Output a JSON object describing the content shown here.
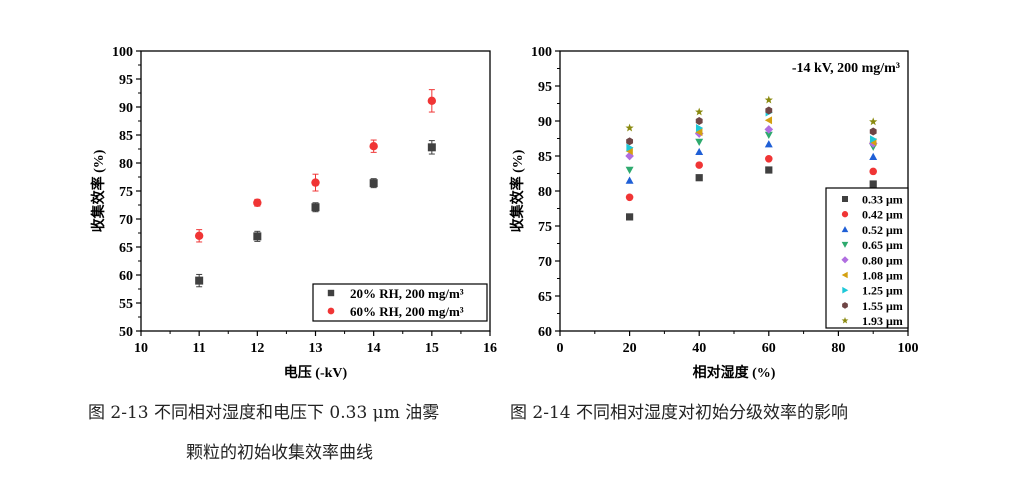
{
  "chart_data": [
    {
      "type": "scatter",
      "title": "",
      "xlabel": "电压 (-kV)",
      "ylabel": "收集效率 (%)",
      "xlim": [
        10,
        16
      ],
      "ylim": [
        50,
        100
      ],
      "xticks": [
        10,
        11,
        12,
        13,
        14,
        15,
        16
      ],
      "yticks": [
        50,
        55,
        60,
        65,
        70,
        75,
        80,
        85,
        90,
        95,
        100
      ],
      "grid": false,
      "legend_position": "bottom-right",
      "series": [
        {
          "name": "20% RH, 200 mg/m³",
          "marker": "square",
          "color": "#404040",
          "x": [
            11,
            12,
            13,
            14,
            15
          ],
          "y": [
            59.0,
            66.9,
            72.1,
            76.4,
            82.8
          ],
          "error": [
            1.1,
            0.9,
            0.8,
            0.8,
            1.2
          ]
        },
        {
          "name": "60% RH, 200 mg/m³",
          "marker": "circle",
          "color": "#f03535",
          "x": [
            11,
            12,
            13,
            14,
            15
          ],
          "y": [
            67.0,
            72.9,
            76.5,
            83.0,
            91.1
          ],
          "error": [
            1.1,
            0.6,
            1.5,
            1.1,
            2.0
          ]
        }
      ]
    },
    {
      "type": "scatter",
      "title": "",
      "annotation": "-14 kV, 200 mg/m³",
      "xlabel": "相对湿度 (%)",
      "ylabel": "收集效率 (%)",
      "xlim": [
        0,
        100
      ],
      "ylim": [
        60,
        100
      ],
      "xticks": [
        0,
        20,
        40,
        60,
        80,
        100
      ],
      "yticks": [
        60,
        65,
        70,
        75,
        80,
        85,
        90,
        95,
        100
      ],
      "grid": false,
      "legend_position": "bottom-right",
      "x": [
        20,
        40,
        60,
        90
      ],
      "series": [
        {
          "name": "0.33 μm",
          "marker": "square",
          "color": "#404040",
          "y": [
            76.3,
            81.9,
            83.0,
            81.0
          ]
        },
        {
          "name": "0.42 μm",
          "marker": "circle",
          "color": "#f03535",
          "y": [
            79.1,
            83.7,
            84.6,
            82.8
          ]
        },
        {
          "name": "0.52 μm",
          "marker": "triangle-up",
          "color": "#1f5fd6",
          "y": [
            81.5,
            85.6,
            86.7,
            84.9
          ]
        },
        {
          "name": "0.65 μm",
          "marker": "triangle-down",
          "color": "#2eaa6e",
          "y": [
            83.0,
            87.0,
            88.0,
            86.3
          ]
        },
        {
          "name": "0.80 μm",
          "marker": "diamond",
          "color": "#b06ee0",
          "y": [
            85.0,
            88.2,
            88.8,
            86.8
          ]
        },
        {
          "name": "1.08 μm",
          "marker": "triangle-left",
          "color": "#d4a010",
          "y": [
            85.7,
            88.4,
            90.1,
            87.0
          ]
        },
        {
          "name": "1.25 μm",
          "marker": "triangle-right",
          "color": "#1ec8d8",
          "y": [
            86.2,
            89.0,
            91.2,
            87.4
          ]
        },
        {
          "name": "1.55 μm",
          "marker": "hexagon",
          "color": "#6e4545",
          "y": [
            87.1,
            90.0,
            91.5,
            88.5
          ]
        },
        {
          "name": "1.93 μm",
          "marker": "star",
          "color": "#8a8a10",
          "y": [
            89.0,
            91.3,
            93.0,
            89.9
          ]
        }
      ]
    }
  ],
  "captions": {
    "fig13_line1": "图 2-13  不同相对湿度和电压下 0.33 μm 油雾",
    "fig13_line2": "颗粒的初始收集效率曲线",
    "fig14": "图 2-14  不同相对湿度对初始分级效率的影响"
  }
}
